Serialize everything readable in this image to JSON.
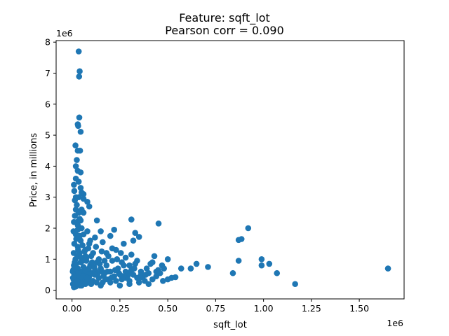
{
  "chart_data": {
    "type": "scatter",
    "title_lines": [
      "Feature: sqft_lot",
      "Pearson corr = 0.090"
    ],
    "xlabel": "sqft_lot",
    "ylabel": "Price, in millions",
    "x_offset_text": "1e6",
    "y_offset_text": "1e6",
    "xlim": [
      -0.083,
      1.734
    ],
    "ylim": [
      -0.28,
      8.05
    ],
    "xticks": [
      0.0,
      0.25,
      0.5,
      0.75,
      1.0,
      1.25,
      1.5
    ],
    "xtick_labels": [
      "0.00",
      "0.25",
      "0.50",
      "0.75",
      "1.00",
      "1.25",
      "1.50"
    ],
    "yticks": [
      0,
      1,
      2,
      3,
      4,
      5,
      6,
      7,
      8
    ],
    "ytick_labels": [
      "0",
      "1",
      "2",
      "3",
      "4",
      "5",
      "6",
      "7",
      "8"
    ],
    "grid": false,
    "color": "#1f77b4",
    "series": [
      {
        "points": [
          [
            0.035,
            7.7
          ],
          [
            0.04,
            7.06
          ],
          [
            0.037,
            6.89
          ],
          [
            0.038,
            5.57
          ],
          [
            0.03,
            5.35
          ],
          [
            0.032,
            5.3
          ],
          [
            0.045,
            5.11
          ],
          [
            0.018,
            4.67
          ],
          [
            0.03,
            4.5
          ],
          [
            0.042,
            4.5
          ],
          [
            0.025,
            4.2
          ],
          [
            0.02,
            4.0
          ],
          [
            0.03,
            3.85
          ],
          [
            0.045,
            3.8
          ],
          [
            0.02,
            3.6
          ],
          [
            0.035,
            3.5
          ],
          [
            0.06,
            3.1
          ],
          [
            0.012,
            3.2
          ],
          [
            0.08,
            2.85
          ],
          [
            0.09,
            2.7
          ],
          [
            0.06,
            2.5
          ],
          [
            0.04,
            2.3
          ],
          [
            0.13,
            2.25
          ],
          [
            0.31,
            2.28
          ],
          [
            0.452,
            2.15
          ],
          [
            0.92,
            2.0
          ],
          [
            0.87,
            1.62
          ],
          [
            0.885,
            1.65
          ],
          [
            0.33,
            1.85
          ],
          [
            0.32,
            1.6
          ],
          [
            0.35,
            1.72
          ],
          [
            0.27,
            1.5
          ],
          [
            1.65,
            0.7
          ],
          [
            1.165,
            0.2
          ],
          [
            1.07,
            0.55
          ],
          [
            1.03,
            0.85
          ],
          [
            0.99,
            1.0
          ],
          [
            0.99,
            0.8
          ],
          [
            0.87,
            0.95
          ],
          [
            0.84,
            0.55
          ],
          [
            0.71,
            0.75
          ],
          [
            0.65,
            0.85
          ],
          [
            0.62,
            0.7
          ],
          [
            0.57,
            0.7
          ],
          [
            0.54,
            0.42
          ],
          [
            0.52,
            0.4
          ],
          [
            0.5,
            1.0
          ],
          [
            0.5,
            0.35
          ],
          [
            0.47,
            0.8
          ],
          [
            0.42,
            0.9
          ],
          [
            0.43,
            1.1
          ],
          [
            0.44,
            0.6
          ],
          [
            0.4,
            0.2
          ],
          [
            0.39,
            0.7
          ],
          [
            0.36,
            0.5
          ],
          [
            0.34,
            0.95
          ],
          [
            0.3,
            0.8
          ],
          [
            0.28,
            0.4
          ],
          [
            0.26,
            0.9
          ],
          [
            0.23,
            1.3
          ],
          [
            0.22,
            1.95
          ],
          [
            0.2,
            1.75
          ],
          [
            0.18,
            1.2
          ],
          [
            0.16,
            1.55
          ],
          [
            0.15,
            1.9
          ],
          [
            0.12,
            1.7
          ],
          [
            0.1,
            1.1
          ],
          [
            0.09,
            1.5
          ],
          [
            0.08,
            1.9
          ],
          [
            0.07,
            1.1
          ],
          [
            0.06,
            1.8
          ],
          [
            0.05,
            2.0
          ],
          [
            0.045,
            1.6
          ],
          [
            0.03,
            1.4
          ],
          [
            0.025,
            2.2
          ],
          [
            0.02,
            2.6
          ],
          [
            0.015,
            2.9
          ],
          [
            0.01,
            3.4
          ],
          [
            0.06,
            2.95
          ],
          [
            0.035,
            3.0
          ],
          [
            0.05,
            2.6
          ],
          [
            0.045,
            3.3
          ],
          [
            0.02,
            3.0
          ],
          [
            0.05,
            3.15
          ],
          [
            0.03,
            2.1
          ],
          [
            0.07,
            1.3
          ],
          [
            0.02,
            1.8
          ],
          [
            0.04,
            1.2
          ],
          [
            0.005,
            0.2
          ],
          [
            0.008,
            0.35
          ],
          [
            0.012,
            0.5
          ],
          [
            0.006,
            0.65
          ],
          [
            0.01,
            0.8
          ],
          [
            0.015,
            0.3
          ],
          [
            0.02,
            0.55
          ],
          [
            0.025,
            0.45
          ],
          [
            0.03,
            0.7
          ],
          [
            0.035,
            0.25
          ],
          [
            0.04,
            0.4
          ],
          [
            0.045,
            0.9
          ],
          [
            0.05,
            0.6
          ],
          [
            0.055,
            0.3
          ],
          [
            0.06,
            0.75
          ],
          [
            0.065,
            0.5
          ],
          [
            0.07,
            0.35
          ],
          [
            0.075,
            0.95
          ],
          [
            0.08,
            0.6
          ],
          [
            0.085,
            0.25
          ],
          [
            0.09,
            0.45
          ],
          [
            0.095,
            0.8
          ],
          [
            0.1,
            0.55
          ],
          [
            0.11,
            0.3
          ],
          [
            0.12,
            0.65
          ],
          [
            0.13,
            0.9
          ],
          [
            0.14,
            0.4
          ],
          [
            0.15,
            0.7
          ],
          [
            0.16,
            0.25
          ],
          [
            0.17,
            0.55
          ],
          [
            0.18,
            0.8
          ],
          [
            0.19,
            0.35
          ],
          [
            0.2,
            0.6
          ],
          [
            0.21,
            0.95
          ],
          [
            0.22,
            0.45
          ],
          [
            0.23,
            0.3
          ],
          [
            0.24,
            0.7
          ],
          [
            0.25,
            0.5
          ],
          [
            0.26,
            0.35
          ],
          [
            0.27,
            0.8
          ],
          [
            0.28,
            0.6
          ],
          [
            0.29,
            0.45
          ],
          [
            0.3,
            0.3
          ],
          [
            0.31,
            0.65
          ],
          [
            0.32,
            0.5
          ],
          [
            0.33,
            0.85
          ],
          [
            0.34,
            0.4
          ],
          [
            0.35,
            0.25
          ],
          [
            0.36,
            0.6
          ],
          [
            0.37,
            0.45
          ],
          [
            0.38,
            0.3
          ],
          [
            0.4,
            0.55
          ],
          [
            0.42,
            0.35
          ],
          [
            0.45,
            0.65
          ],
          [
            0.48,
            0.7
          ],
          [
            0.3,
            0.2
          ],
          [
            0.25,
            0.15
          ],
          [
            0.2,
            0.25
          ],
          [
            0.15,
            0.15
          ],
          [
            0.1,
            0.2
          ],
          [
            0.05,
            0.15
          ],
          [
            0.02,
            0.12
          ],
          [
            0.01,
            0.1
          ],
          [
            0.005,
            0.4
          ],
          [
            0.018,
            1.0
          ],
          [
            0.028,
            1.1
          ],
          [
            0.032,
            1.3
          ],
          [
            0.012,
            1.5
          ],
          [
            0.022,
            1.65
          ],
          [
            0.008,
            1.9
          ],
          [
            0.04,
            1.75
          ],
          [
            0.055,
            1.45
          ],
          [
            0.065,
            1.25
          ],
          [
            0.075,
            1.05
          ],
          [
            0.085,
            1.35
          ],
          [
            0.095,
            1.6
          ],
          [
            0.11,
            1.2
          ],
          [
            0.125,
            1.4
          ],
          [
            0.14,
            1.0
          ],
          [
            0.155,
            1.25
          ],
          [
            0.17,
            0.95
          ],
          [
            0.19,
            1.1
          ],
          [
            0.21,
            1.35
          ],
          [
            0.235,
            1.0
          ],
          [
            0.255,
            1.2
          ],
          [
            0.28,
            1.05
          ],
          [
            0.31,
            1.15
          ],
          [
            0.015,
            2.4
          ],
          [
            0.025,
            2.75
          ],
          [
            0.035,
            2.5
          ],
          [
            0.01,
            2.2
          ],
          [
            0.03,
            1.95
          ],
          [
            0.045,
            2.25
          ],
          [
            0.009,
            1.2
          ],
          [
            0.014,
            0.9
          ],
          [
            0.004,
            0.6
          ],
          [
            0.116,
            0.75
          ],
          [
            0.135,
            0.55
          ],
          [
            0.165,
            0.45
          ],
          [
            0.185,
            0.6
          ],
          [
            0.205,
            0.4
          ],
          [
            0.225,
            0.65
          ],
          [
            0.245,
            0.55
          ],
          [
            0.265,
            0.45
          ],
          [
            0.295,
            0.55
          ],
          [
            0.325,
            0.7
          ],
          [
            0.355,
            0.4
          ],
          [
            0.385,
            0.5
          ],
          [
            0.41,
            0.85
          ],
          [
            0.44,
            0.45
          ],
          [
            0.46,
            0.55
          ],
          [
            0.475,
            0.3
          ],
          [
            0.06,
            0.45
          ],
          [
            0.07,
            0.2
          ],
          [
            0.035,
            0.55
          ],
          [
            0.042,
            0.15
          ],
          [
            0.013,
            0.7
          ],
          [
            0.017,
            0.2
          ],
          [
            0.022,
            0.85
          ],
          [
            0.027,
            0.3
          ],
          [
            0.048,
            1.05
          ],
          [
            0.058,
            0.95
          ],
          [
            0.068,
            0.65
          ],
          [
            0.078,
            0.4
          ],
          [
            0.088,
            0.7
          ],
          [
            0.098,
            0.3
          ],
          [
            0.105,
            0.9
          ],
          [
            0.118,
            0.5
          ],
          [
            0.128,
            0.25
          ],
          [
            0.145,
            0.85
          ],
          [
            0.158,
            0.6
          ],
          [
            0.175,
            0.35
          ]
        ]
      }
    ]
  }
}
